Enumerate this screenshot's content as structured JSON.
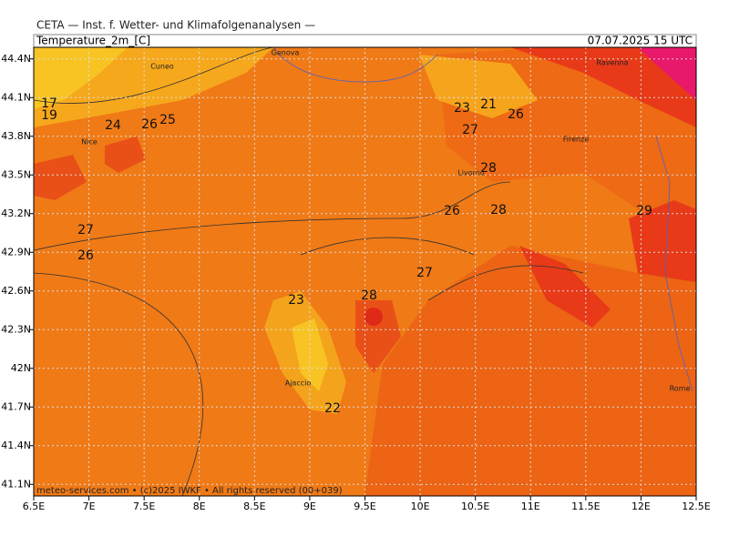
{
  "header": {
    "institute": "CETA — Inst. f. Wetter- und Klimafolgenanalysen —",
    "field": "Temperature_2m_[C]",
    "valid": "07.07.2025 15 UTC"
  },
  "map": {
    "xticks": [
      {
        "value": 6.5,
        "label": "6.5E"
      },
      {
        "value": 7,
        "label": "7E"
      },
      {
        "value": 7.5,
        "label": "7.5E"
      },
      {
        "value": 8,
        "label": "8E"
      },
      {
        "value": 8.5,
        "label": "8.5E"
      },
      {
        "value": 9,
        "label": "9E"
      },
      {
        "value": 9.5,
        "label": "9.5E"
      },
      {
        "value": 10,
        "label": "10E"
      },
      {
        "value": 10.5,
        "label": "10.5E"
      },
      {
        "value": 11,
        "label": "11E"
      },
      {
        "value": 11.5,
        "label": "11.5E"
      },
      {
        "value": 12,
        "label": "12E"
      },
      {
        "value": 12.5,
        "label": "12.5E"
      }
    ],
    "yticks": [
      {
        "value": 44.4,
        "label": "44.4N"
      },
      {
        "value": 44.1,
        "label": "44.1N"
      },
      {
        "value": 43.8,
        "label": "43.8N"
      },
      {
        "value": 43.5,
        "label": "43.5N"
      },
      {
        "value": 43.2,
        "label": "43.2N"
      },
      {
        "value": 42.9,
        "label": "42.9N"
      },
      {
        "value": 42.6,
        "label": "42.6N"
      },
      {
        "value": 42.3,
        "label": "42.3N"
      },
      {
        "value": 42,
        "label": "42N"
      },
      {
        "value": 41.7,
        "label": "41.7N"
      },
      {
        "value": 41.4,
        "label": "41.4N"
      },
      {
        "value": 41.1,
        "label": "41.1N"
      }
    ],
    "xlim": [
      6.5,
      12.5
    ],
    "ylim": [
      41.01,
      44.49
    ],
    "contour_labels": [
      17,
      19,
      24,
      26,
      25,
      23,
      21,
      26,
      27,
      28,
      26,
      28,
      29,
      27,
      26,
      27,
      23,
      28,
      22
    ],
    "places": [
      "Genova",
      "Cuneo",
      "Nice",
      "Livorno",
      "Firenze",
      "Ravenna",
      "Ajaccio",
      "Rome"
    ]
  },
  "footer": "meteo-services.com • (c)2025 IWKF • All rights reserved (00+039)"
}
